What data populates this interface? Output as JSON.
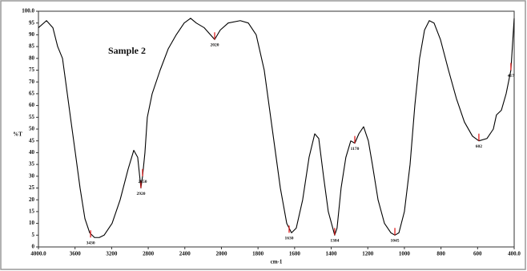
{
  "chart_data": {
    "type": "line",
    "title": "Sample 2",
    "x_label": "cm-1",
    "y_label": "%T",
    "xlim": [
      4000,
      400
    ],
    "ylim": [
      0,
      100
    ],
    "xticks": [
      {
        "value": 4000,
        "label": "4000.0"
      },
      3600,
      3200,
      2800,
      2400,
      2000,
      1800,
      1600,
      1400,
      1200,
      1000,
      800,
      600,
      {
        "value": 400,
        "label": "400.0"
      }
    ],
    "yticks": [
      0,
      5,
      10,
      15,
      20,
      25,
      30,
      35,
      40,
      45,
      50,
      55,
      60,
      65,
      70,
      75,
      80,
      85,
      90,
      95,
      {
        "value": 100,
        "label": "100.0"
      }
    ],
    "series": [
      {
        "name": "Sample 2",
        "color": "#000000",
        "x": [
          4000,
          3912,
          3842,
          3790,
          3737,
          3702,
          3650,
          3597,
          3545,
          3492,
          3440,
          3387,
          3335,
          3282,
          3195,
          3107,
          3020,
          2958,
          2915,
          2880,
          2862,
          2836,
          2810,
          2757,
          2670,
          2582,
          2494,
          2407,
          2337,
          2275,
          2188,
          2074,
          2013,
          1963,
          1897,
          1853,
          1810,
          1766,
          1722,
          1678,
          1643,
          1617,
          1591,
          1556,
          1521,
          1490,
          1468,
          1442,
          1416,
          1381,
          1368,
          1346,
          1320,
          1293,
          1271,
          1249,
          1223,
          1197,
          1175,
          1144,
          1109,
          1074,
          1052,
          1030,
          1000,
          969,
          943,
          917,
          890,
          864,
          838,
          803,
          759,
          716,
          672,
          628,
          593,
          549,
          514,
          497,
          470,
          444,
          418,
          400
        ],
        "values": [
          93,
          96,
          93,
          85,
          80,
          70,
          55,
          40,
          25,
          12,
          6,
          4,
          4,
          5,
          10,
          20,
          33,
          41,
          38,
          25,
          30,
          40,
          55,
          65,
          75,
          84,
          90,
          95,
          97,
          95,
          93,
          88,
          92,
          95,
          96,
          95,
          90,
          75,
          50,
          25,
          10,
          6,
          8,
          20,
          38,
          48,
          46,
          30,
          15,
          5,
          8,
          25,
          38,
          45,
          44,
          48,
          51,
          45,
          35,
          20,
          10,
          6,
          5,
          6,
          15,
          35,
          60,
          80,
          92,
          96,
          95,
          88,
          75,
          63,
          53,
          47,
          45,
          46,
          50,
          56,
          58,
          65,
          75,
          97
        ]
      }
    ],
    "annotations": [
      {
        "text": "3430",
        "x": 3430,
        "y": 4
      },
      {
        "text": "2920",
        "x": 2880,
        "y": 25
      },
      {
        "text": "2850",
        "x": 2862,
        "y": 30
      },
      {
        "text": "2020",
        "x": 2074,
        "y": 88
      },
      {
        "text": "1630",
        "x": 1630,
        "y": 6
      },
      {
        "text": "1384",
        "x": 1381,
        "y": 5
      },
      {
        "text": "1170",
        "x": 1271,
        "y": 44
      },
      {
        "text": "1045",
        "x": 1052,
        "y": 5
      },
      {
        "text": "602",
        "x": 593,
        "y": 45
      },
      {
        "text": "417",
        "x": 418,
        "y": 75
      }
    ],
    "annotation_color": "#e02020"
  }
}
